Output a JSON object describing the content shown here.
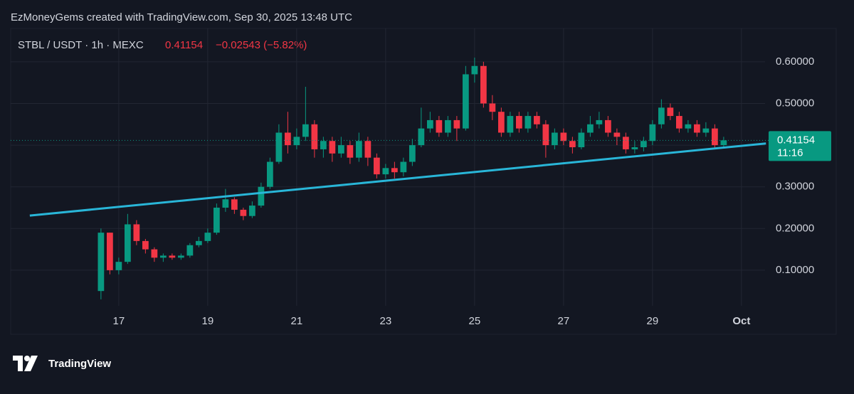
{
  "chart_data": {
    "type": "candlestick",
    "credit": "EzMoneyGems created with TradingView.com, Sep 30, 2025 13:48 UTC",
    "title": "STBL / USDT · 1h · MEXC",
    "last_price": {
      "value": 0.41154,
      "label": "0.41154"
    },
    "change": "−0.02543 (−5.82%)",
    "countdown": "11:16",
    "brand": "TradingView",
    "up_color": "#089981",
    "down_color": "#f23645",
    "x": [
      16.6,
      16.8,
      17.0,
      17.2,
      17.4,
      17.6,
      17.8,
      18.0,
      18.2,
      18.4,
      18.6,
      18.8,
      19.0,
      19.2,
      19.4,
      19.6,
      19.8,
      20.0,
      20.2,
      20.4,
      20.6,
      20.8,
      21.0,
      21.2,
      21.4,
      21.6,
      21.8,
      22.0,
      22.2,
      22.4,
      22.6,
      22.8,
      23.0,
      23.2,
      23.4,
      23.6,
      23.8,
      24.0,
      24.2,
      24.4,
      24.6,
      24.8,
      25.0,
      25.2,
      25.4,
      25.6,
      25.8,
      26.0,
      26.2,
      26.4,
      26.6,
      26.8,
      27.0,
      27.2,
      27.4,
      27.6,
      27.8,
      28.0,
      28.2,
      28.4,
      28.6,
      28.8,
      29.0,
      29.2,
      29.4,
      29.6,
      29.8,
      30.0,
      30.2,
      30.4,
      30.6
    ],
    "open": [
      0.05,
      0.19,
      0.1,
      0.12,
      0.21,
      0.17,
      0.15,
      0.13,
      0.135,
      0.13,
      0.135,
      0.16,
      0.17,
      0.19,
      0.25,
      0.27,
      0.245,
      0.23,
      0.255,
      0.3,
      0.36,
      0.43,
      0.4,
      0.42,
      0.45,
      0.39,
      0.41,
      0.38,
      0.4,
      0.37,
      0.41,
      0.37,
      0.33,
      0.345,
      0.335,
      0.36,
      0.4,
      0.44,
      0.46,
      0.43,
      0.46,
      0.44,
      0.57,
      0.59,
      0.5,
      0.48,
      0.43,
      0.47,
      0.44,
      0.47,
      0.45,
      0.4,
      0.43,
      0.41,
      0.395,
      0.43,
      0.45,
      0.46,
      0.43,
      0.42,
      0.39,
      0.395,
      0.41,
      0.45,
      0.49,
      0.47,
      0.44,
      0.45,
      0.43,
      0.44,
      0.4
    ],
    "high": [
      0.2,
      0.19,
      0.13,
      0.235,
      0.22,
      0.175,
      0.155,
      0.14,
      0.14,
      0.14,
      0.165,
      0.18,
      0.2,
      0.26,
      0.295,
      0.275,
      0.25,
      0.265,
      0.31,
      0.37,
      0.45,
      0.48,
      0.44,
      0.54,
      0.46,
      0.42,
      0.42,
      0.42,
      0.41,
      0.43,
      0.42,
      0.38,
      0.355,
      0.36,
      0.37,
      0.415,
      0.49,
      0.48,
      0.47,
      0.47,
      0.47,
      0.59,
      0.61,
      0.6,
      0.52,
      0.49,
      0.48,
      0.48,
      0.48,
      0.48,
      0.46,
      0.44,
      0.44,
      0.42,
      0.44,
      0.47,
      0.48,
      0.47,
      0.44,
      0.43,
      0.41,
      0.42,
      0.46,
      0.51,
      0.5,
      0.48,
      0.46,
      0.46,
      0.455,
      0.45,
      0.42
    ],
    "low": [
      0.03,
      0.09,
      0.09,
      0.115,
      0.16,
      0.14,
      0.12,
      0.12,
      0.125,
      0.125,
      0.13,
      0.155,
      0.165,
      0.185,
      0.24,
      0.235,
      0.22,
      0.225,
      0.25,
      0.295,
      0.355,
      0.38,
      0.39,
      0.41,
      0.37,
      0.37,
      0.36,
      0.37,
      0.355,
      0.36,
      0.35,
      0.32,
      0.32,
      0.32,
      0.325,
      0.35,
      0.395,
      0.43,
      0.42,
      0.42,
      0.41,
      0.435,
      0.55,
      0.49,
      0.46,
      0.42,
      0.42,
      0.43,
      0.43,
      0.44,
      0.37,
      0.39,
      0.4,
      0.38,
      0.39,
      0.42,
      0.44,
      0.42,
      0.4,
      0.38,
      0.38,
      0.385,
      0.4,
      0.44,
      0.46,
      0.43,
      0.43,
      0.42,
      0.42,
      0.39,
      0.395
    ],
    "close": [
      0.19,
      0.1,
      0.12,
      0.21,
      0.17,
      0.15,
      0.13,
      0.135,
      0.13,
      0.135,
      0.16,
      0.17,
      0.19,
      0.25,
      0.27,
      0.245,
      0.23,
      0.255,
      0.3,
      0.36,
      0.43,
      0.4,
      0.42,
      0.45,
      0.39,
      0.41,
      0.38,
      0.4,
      0.37,
      0.41,
      0.37,
      0.33,
      0.345,
      0.335,
      0.36,
      0.4,
      0.44,
      0.46,
      0.43,
      0.46,
      0.44,
      0.57,
      0.59,
      0.5,
      0.48,
      0.43,
      0.47,
      0.44,
      0.47,
      0.45,
      0.4,
      0.43,
      0.41,
      0.395,
      0.43,
      0.45,
      0.46,
      0.43,
      0.42,
      0.39,
      0.395,
      0.41,
      0.45,
      0.49,
      0.47,
      0.44,
      0.45,
      0.43,
      0.44,
      0.4,
      0.41154
    ],
    "trendline": {
      "x": [
        15.0,
        31.55
      ],
      "y": [
        0.231,
        0.404
      ],
      "color": "#29b6d8"
    },
    "xlim": [
      14.57,
      31.53
    ],
    "xticks": [
      17,
      19,
      21,
      23,
      25,
      27,
      29,
      {
        "value": 31,
        "label": "Oct"
      }
    ],
    "ylim": [
      0.0145,
      0.68
    ],
    "yticks": [
      {
        "value": 0.1,
        "label": "0.10000"
      },
      {
        "value": 0.2,
        "label": "0.20000"
      },
      {
        "value": 0.3,
        "label": "0.30000"
      },
      {
        "value": 0.4,
        "label": "0.40000"
      },
      {
        "value": 0.5,
        "label": "0.50000"
      },
      {
        "value": 0.6,
        "label": "0.60000"
      }
    ],
    "grid": true
  }
}
